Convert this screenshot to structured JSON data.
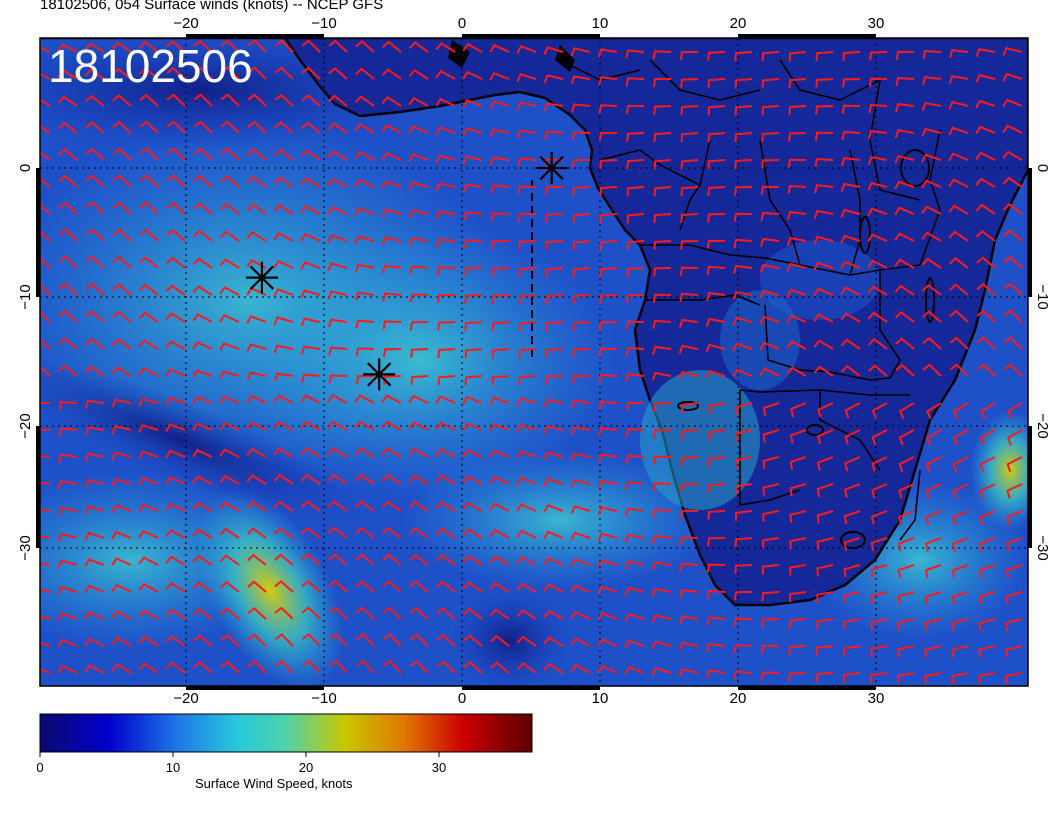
{
  "title": "18102506, 054 Surface winds (knots) -- NCEP GFS",
  "stamp": "18102506",
  "axes": {
    "lon_ticks": [
      "−20",
      "−10",
      "0",
      "10",
      "20",
      "30"
    ],
    "lat_ticks": [
      "0",
      "−10",
      "−20",
      "−30"
    ]
  },
  "colorbar": {
    "label": "Surface Wind Speed, knots",
    "ticks": [
      "0",
      "10",
      "20",
      "30"
    ],
    "range": [
      0,
      37
    ],
    "colors": [
      "#0a0a6e",
      "#0000cc",
      "#1e78e6",
      "#28c8dc",
      "#50d2aa",
      "#c8c800",
      "#e07800",
      "#cc0000",
      "#5a0000"
    ]
  },
  "markers": [
    {
      "name": "storm-marker-1",
      "lon": 6.5,
      "lat": 0
    },
    {
      "name": "storm-marker-2",
      "lon": -14.5,
      "lat": -8.5
    },
    {
      "name": "storm-marker-3",
      "lon": -6,
      "lat": -16
    }
  ],
  "colors": {
    "barb": "#ff1a1a",
    "coast": "#000000",
    "ocean": "#1e50c8",
    "land": "#14289a"
  }
}
